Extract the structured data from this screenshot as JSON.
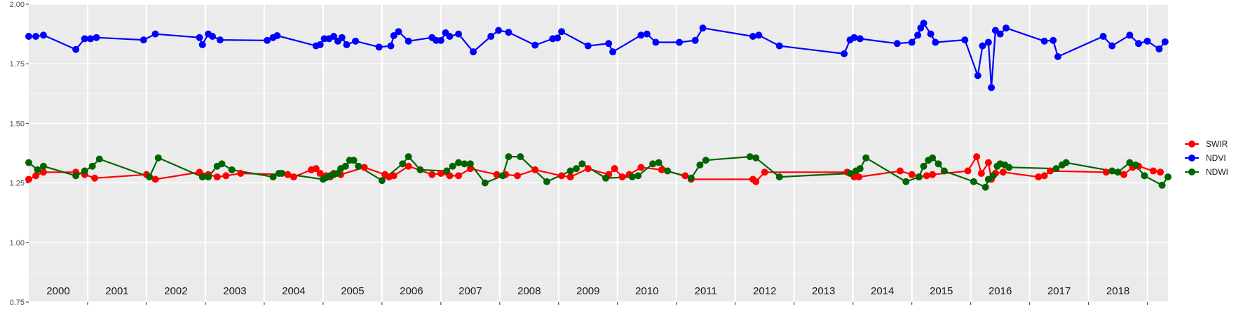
{
  "chart_data": {
    "type": "line",
    "title": "",
    "xlabel": "",
    "ylabel": "",
    "xlim": [
      1999.5,
      2018.85
    ],
    "ylim": [
      0.75,
      2.0
    ],
    "yticks": [
      "0.75",
      "1.00",
      "1.25",
      "1.50",
      "1.75",
      "2.00"
    ],
    "year_labels": [
      "2000",
      "2001",
      "2002",
      "2003",
      "2004",
      "2005",
      "2006",
      "2007",
      "2008",
      "2009",
      "2010",
      "2011",
      "2012",
      "2013",
      "2014",
      "2015",
      "2016",
      "2017",
      "2018"
    ],
    "grid": true,
    "legend_position": "right",
    "series": [
      {
        "name": "SWIR",
        "color": "#ff0000",
        "points": [
          [
            1999.5,
            1.265
          ],
          [
            1999.62,
            1.28
          ],
          [
            1999.75,
            1.295
          ],
          [
            2000.3,
            1.295
          ],
          [
            2000.45,
            1.285
          ],
          [
            2000.62,
            1.27
          ],
          [
            2001.5,
            1.285
          ],
          [
            2001.65,
            1.265
          ],
          [
            2002.4,
            1.295
          ],
          [
            2002.55,
            1.285
          ],
          [
            2002.7,
            1.275
          ],
          [
            2002.85,
            1.28
          ],
          [
            2003.1,
            1.29
          ],
          [
            2003.9,
            1.285
          ],
          [
            2004.0,
            1.275
          ],
          [
            2004.3,
            1.305
          ],
          [
            2004.38,
            1.31
          ],
          [
            2004.45,
            1.29
          ],
          [
            2004.55,
            1.28
          ],
          [
            2004.62,
            1.275
          ],
          [
            2004.68,
            1.29
          ],
          [
            2004.8,
            1.285
          ],
          [
            2005.2,
            1.315
          ],
          [
            2005.55,
            1.285
          ],
          [
            2005.62,
            1.275
          ],
          [
            2005.7,
            1.28
          ],
          [
            2005.95,
            1.32
          ],
          [
            2006.35,
            1.285
          ],
          [
            2006.5,
            1.29
          ],
          [
            2006.65,
            1.28
          ],
          [
            2006.8,
            1.28
          ],
          [
            2007.0,
            1.31
          ],
          [
            2007.45,
            1.285
          ],
          [
            2007.6,
            1.285
          ],
          [
            2007.8,
            1.28
          ],
          [
            2008.1,
            1.305
          ],
          [
            2008.55,
            1.28
          ],
          [
            2008.7,
            1.275
          ],
          [
            2009.0,
            1.31
          ],
          [
            2009.35,
            1.285
          ],
          [
            2009.45,
            1.31
          ],
          [
            2009.58,
            1.275
          ],
          [
            2009.7,
            1.285
          ],
          [
            2009.9,
            1.315
          ],
          [
            2010.25,
            1.305
          ],
          [
            2010.65,
            1.28
          ],
          [
            2010.75,
            1.265
          ],
          [
            2011.8,
            1.265
          ],
          [
            2011.85,
            1.255
          ],
          [
            2012.0,
            1.295
          ],
          [
            2013.4,
            1.295
          ],
          [
            2013.52,
            1.275
          ],
          [
            2013.6,
            1.275
          ],
          [
            2014.3,
            1.3
          ],
          [
            2014.5,
            1.285
          ],
          [
            2014.62,
            1.275
          ],
          [
            2014.75,
            1.28
          ],
          [
            2014.85,
            1.285
          ],
          [
            2015.45,
            1.3
          ],
          [
            2015.6,
            1.36
          ],
          [
            2015.68,
            1.29
          ],
          [
            2015.8,
            1.335
          ],
          [
            2015.85,
            1.265
          ],
          [
            2015.92,
            1.29
          ],
          [
            2016.05,
            1.295
          ],
          [
            2016.65,
            1.275
          ],
          [
            2016.75,
            1.28
          ],
          [
            2016.85,
            1.3
          ],
          [
            2017.8,
            1.295
          ],
          [
            2018.1,
            1.285
          ],
          [
            2018.25,
            1.315
          ],
          [
            2018.35,
            1.32
          ],
          [
            2018.6,
            1.3
          ],
          [
            2018.72,
            1.295
          ]
        ]
      },
      {
        "name": "NDVI",
        "color": "#0000ff",
        "points": [
          [
            1999.5,
            1.865
          ],
          [
            1999.62,
            1.865
          ],
          [
            1999.75,
            1.87
          ],
          [
            2000.3,
            1.81
          ],
          [
            2000.45,
            1.855
          ],
          [
            2000.55,
            1.855
          ],
          [
            2000.65,
            1.86
          ],
          [
            2001.45,
            1.85
          ],
          [
            2001.65,
            1.875
          ],
          [
            2002.4,
            1.86
          ],
          [
            2002.45,
            1.83
          ],
          [
            2002.55,
            1.875
          ],
          [
            2002.62,
            1.865
          ],
          [
            2002.75,
            1.85
          ],
          [
            2003.55,
            1.848
          ],
          [
            2003.65,
            1.86
          ],
          [
            2003.72,
            1.868
          ],
          [
            2004.38,
            1.825
          ],
          [
            2004.45,
            1.83
          ],
          [
            2004.52,
            1.855
          ],
          [
            2004.6,
            1.855
          ],
          [
            2004.68,
            1.865
          ],
          [
            2004.75,
            1.845
          ],
          [
            2004.82,
            1.86
          ],
          [
            2004.9,
            1.83
          ],
          [
            2005.05,
            1.845
          ],
          [
            2005.45,
            1.82
          ],
          [
            2005.65,
            1.825
          ],
          [
            2005.7,
            1.868
          ],
          [
            2005.78,
            1.885
          ],
          [
            2005.95,
            1.845
          ],
          [
            2006.35,
            1.86
          ],
          [
            2006.42,
            1.848
          ],
          [
            2006.5,
            1.848
          ],
          [
            2006.58,
            1.88
          ],
          [
            2006.65,
            1.865
          ],
          [
            2006.8,
            1.875
          ],
          [
            2007.05,
            1.8
          ],
          [
            2007.35,
            1.865
          ],
          [
            2007.48,
            1.89
          ],
          [
            2007.65,
            1.882
          ],
          [
            2008.1,
            1.828
          ],
          [
            2008.4,
            1.855
          ],
          [
            2008.48,
            1.858
          ],
          [
            2008.55,
            1.885
          ],
          [
            2009.0,
            1.825
          ],
          [
            2009.35,
            1.835
          ],
          [
            2009.42,
            1.8
          ],
          [
            2009.9,
            1.87
          ],
          [
            2010.0,
            1.875
          ],
          [
            2010.15,
            1.84
          ],
          [
            2010.55,
            1.84
          ],
          [
            2010.82,
            1.848
          ],
          [
            2010.95,
            1.9
          ],
          [
            2011.8,
            1.865
          ],
          [
            2011.9,
            1.87
          ],
          [
            2012.25,
            1.825
          ],
          [
            2013.35,
            1.792
          ],
          [
            2013.45,
            1.85
          ],
          [
            2013.52,
            1.86
          ],
          [
            2013.62,
            1.855
          ],
          [
            2014.25,
            1.835
          ],
          [
            2014.5,
            1.84
          ],
          [
            2014.6,
            1.87
          ],
          [
            2014.65,
            1.9
          ],
          [
            2014.7,
            1.92
          ],
          [
            2014.82,
            1.875
          ],
          [
            2014.9,
            1.84
          ],
          [
            2015.4,
            1.85
          ],
          [
            2015.62,
            1.7
          ],
          [
            2015.7,
            1.825
          ],
          [
            2015.8,
            1.84
          ],
          [
            2015.85,
            1.65
          ],
          [
            2015.92,
            1.89
          ],
          [
            2016.0,
            1.875
          ],
          [
            2016.1,
            1.9
          ],
          [
            2016.75,
            1.845
          ],
          [
            2016.9,
            1.848
          ],
          [
            2016.98,
            1.78
          ],
          [
            2017.75,
            1.865
          ],
          [
            2017.9,
            1.825
          ],
          [
            2018.2,
            1.87
          ],
          [
            2018.35,
            1.835
          ],
          [
            2018.5,
            1.845
          ],
          [
            2018.7,
            1.812
          ],
          [
            2018.8,
            1.842
          ]
        ]
      },
      {
        "name": "NDWI",
        "color": "#006400",
        "points": [
          [
            1999.5,
            1.335
          ],
          [
            1999.65,
            1.305
          ],
          [
            1999.75,
            1.32
          ],
          [
            2000.3,
            1.28
          ],
          [
            2000.45,
            1.3
          ],
          [
            2000.58,
            1.32
          ],
          [
            2000.7,
            1.35
          ],
          [
            2001.55,
            1.275
          ],
          [
            2001.7,
            1.355
          ],
          [
            2002.45,
            1.275
          ],
          [
            2002.55,
            1.275
          ],
          [
            2002.7,
            1.32
          ],
          [
            2002.78,
            1.33
          ],
          [
            2002.95,
            1.305
          ],
          [
            2003.65,
            1.275
          ],
          [
            2003.75,
            1.29
          ],
          [
            2003.8,
            1.29
          ],
          [
            2004.5,
            1.265
          ],
          [
            2004.55,
            1.272
          ],
          [
            2004.62,
            1.28
          ],
          [
            2004.68,
            1.285
          ],
          [
            2004.75,
            1.29
          ],
          [
            2004.8,
            1.31
          ],
          [
            2004.88,
            1.32
          ],
          [
            2004.95,
            1.345
          ],
          [
            2005.02,
            1.345
          ],
          [
            2005.1,
            1.32
          ],
          [
            2005.5,
            1.26
          ],
          [
            2005.85,
            1.33
          ],
          [
            2005.95,
            1.36
          ],
          [
            2006.15,
            1.305
          ],
          [
            2006.6,
            1.3
          ],
          [
            2006.7,
            1.32
          ],
          [
            2006.8,
            1.335
          ],
          [
            2006.9,
            1.33
          ],
          [
            2007.0,
            1.33
          ],
          [
            2007.25,
            1.25
          ],
          [
            2007.55,
            1.28
          ],
          [
            2007.65,
            1.36
          ],
          [
            2007.85,
            1.36
          ],
          [
            2008.3,
            1.255
          ],
          [
            2008.7,
            1.3
          ],
          [
            2008.8,
            1.31
          ],
          [
            2008.9,
            1.33
          ],
          [
            2009.3,
            1.27
          ],
          [
            2009.75,
            1.275
          ],
          [
            2009.85,
            1.28
          ],
          [
            2010.1,
            1.33
          ],
          [
            2010.2,
            1.335
          ],
          [
            2010.35,
            1.3
          ],
          [
            2010.75,
            1.27
          ],
          [
            2010.9,
            1.325
          ],
          [
            2011.0,
            1.345
          ],
          [
            2011.75,
            1.36
          ],
          [
            2011.85,
            1.355
          ],
          [
            2012.25,
            1.275
          ],
          [
            2013.45,
            1.29
          ],
          [
            2013.55,
            1.3
          ],
          [
            2013.62,
            1.31
          ],
          [
            2013.72,
            1.355
          ],
          [
            2014.4,
            1.255
          ],
          [
            2014.62,
            1.275
          ],
          [
            2014.7,
            1.32
          ],
          [
            2014.78,
            1.345
          ],
          [
            2014.85,
            1.355
          ],
          [
            2014.95,
            1.33
          ],
          [
            2015.05,
            1.3
          ],
          [
            2015.55,
            1.255
          ],
          [
            2015.75,
            1.232
          ],
          [
            2015.8,
            1.265
          ],
          [
            2015.88,
            1.28
          ],
          [
            2015.95,
            1.32
          ],
          [
            2016.0,
            1.33
          ],
          [
            2016.08,
            1.325
          ],
          [
            2016.15,
            1.315
          ],
          [
            2016.95,
            1.31
          ],
          [
            2017.05,
            1.325
          ],
          [
            2017.12,
            1.335
          ],
          [
            2017.9,
            1.3
          ],
          [
            2018.0,
            1.295
          ],
          [
            2018.2,
            1.335
          ],
          [
            2018.3,
            1.325
          ],
          [
            2018.45,
            1.28
          ],
          [
            2018.75,
            1.24
          ],
          [
            2018.85,
            1.275
          ]
        ]
      }
    ]
  }
}
